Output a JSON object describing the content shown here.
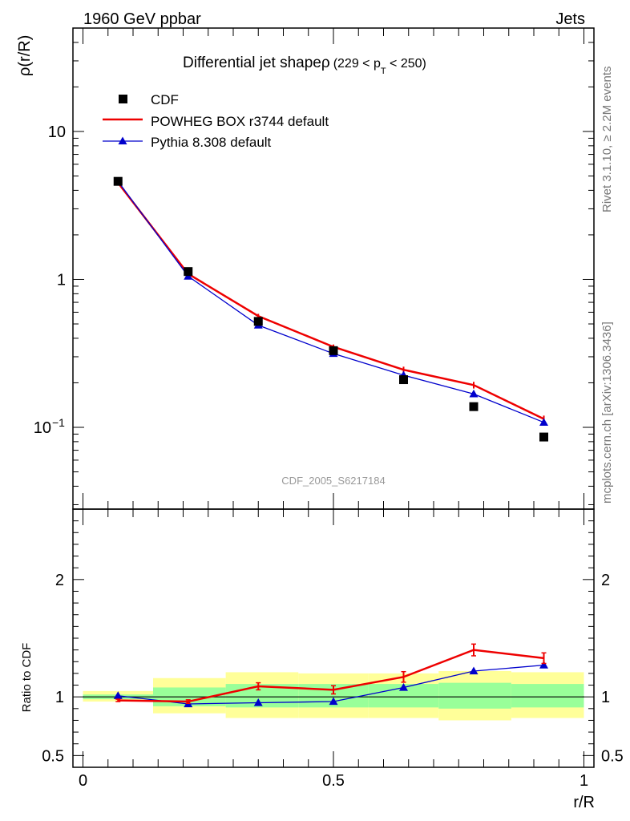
{
  "header": {
    "left": "1960 GeV ppbar",
    "right": "Jets"
  },
  "side_labels": {
    "rivet": "Rivet 3.1.10, ≥ 2.2M events",
    "mcplots": "mcplots.cern.ch [arXiv:1306.3436]"
  },
  "colors": {
    "data": "#000000",
    "powheg": "#ee0000",
    "pythia": "#0000cc",
    "band_inner": "#99ff99",
    "band_outer": "#ffff99"
  },
  "chart_data": [
    {
      "type": "line",
      "title": "Differential jet shapeρ",
      "title_suffix": "(229 < p",
      "title_sub": "T",
      "title_end": " < 250)",
      "ylabel": "ρ(r/R)",
      "yscale": "log",
      "ylim": [
        0.028,
        50
      ],
      "xlim": [
        -0.02,
        1.02
      ],
      "yticks": [
        {
          "value": 10,
          "label": "10"
        },
        {
          "value": 1,
          "label": "1"
        },
        {
          "value": 0.1,
          "label": "10",
          "sup": "−1"
        }
      ],
      "x": [
        0.07,
        0.21,
        0.35,
        0.5,
        0.64,
        0.78,
        0.92
      ],
      "series": [
        {
          "name": "CDF",
          "style": "markers",
          "values": [
            4.6,
            1.13,
            0.52,
            0.33,
            0.21,
            0.138,
            0.086
          ]
        },
        {
          "name": "POWHEG BOX r3744 default",
          "style": "line",
          "values": [
            4.5,
            1.09,
            0.565,
            0.35,
            0.245,
            0.193,
            0.114
          ],
          "errors": [
            0,
            0,
            0.02,
            0.013,
            0.012,
            0.01,
            0.006
          ]
        },
        {
          "name": "Pythia 8.308 default",
          "style": "line-triangles",
          "values": [
            4.6,
            1.05,
            0.49,
            0.315,
            0.225,
            0.168,
            0.108
          ],
          "errors": [
            0,
            0,
            0.01,
            0.006,
            0.006,
            0.004,
            0.003
          ]
        }
      ],
      "legend": "top-left",
      "watermark": "CDF_2005_S6217184"
    },
    {
      "type": "line",
      "ylabel": "Ratio to CDF",
      "xlabel": "r/R",
      "ylim": [
        0.4,
        2.6
      ],
      "xlim": [
        -0.02,
        1.02
      ],
      "yticks": [
        {
          "value": 2,
          "label": "2"
        },
        {
          "value": 1,
          "label": "1"
        },
        {
          "value": 0.5,
          "label": "0.5"
        }
      ],
      "xticks": [
        {
          "value": 0,
          "label": "0"
        },
        {
          "value": 0.5,
          "label": "0.5"
        },
        {
          "value": 1,
          "label": "1"
        }
      ],
      "bands": [
        {
          "x0": 0,
          "x1": 0.14,
          "inner": [
            0.98,
            1.02
          ],
          "outer": [
            0.96,
            1.05
          ]
        },
        {
          "x0": 0.14,
          "x1": 0.285,
          "inner": [
            0.92,
            1.08
          ],
          "outer": [
            0.86,
            1.16
          ]
        },
        {
          "x0": 0.285,
          "x1": 0.43,
          "inner": [
            0.91,
            1.11
          ],
          "outer": [
            0.82,
            1.21
          ]
        },
        {
          "x0": 0.43,
          "x1": 0.57,
          "inner": [
            0.91,
            1.11
          ],
          "outer": [
            0.82,
            1.2
          ]
        },
        {
          "x0": 0.57,
          "x1": 0.71,
          "inner": [
            0.91,
            1.11
          ],
          "outer": [
            0.82,
            1.2
          ]
        },
        {
          "x0": 0.71,
          "x1": 0.855,
          "inner": [
            0.9,
            1.12
          ],
          "outer": [
            0.8,
            1.22
          ]
        },
        {
          "x0": 0.855,
          "x1": 1.0,
          "inner": [
            0.91,
            1.11
          ],
          "outer": [
            0.82,
            1.21
          ]
        }
      ],
      "reference": 1,
      "series": [
        {
          "name": "POWHEG BOX r3744 default",
          "values": [
            0.97,
            0.96,
            1.09,
            1.06,
            1.17,
            1.4,
            1.33
          ],
          "errors": [
            0.01,
            0.015,
            0.03,
            0.035,
            0.045,
            0.05,
            0.045
          ]
        },
        {
          "name": "Pythia 8.308 default",
          "values": [
            1.01,
            0.94,
            0.95,
            0.96,
            1.08,
            1.22,
            1.27
          ],
          "errors": [
            0.01,
            0.01,
            0.01,
            0.015,
            0.02,
            0.025,
            0.025
          ]
        }
      ]
    }
  ]
}
